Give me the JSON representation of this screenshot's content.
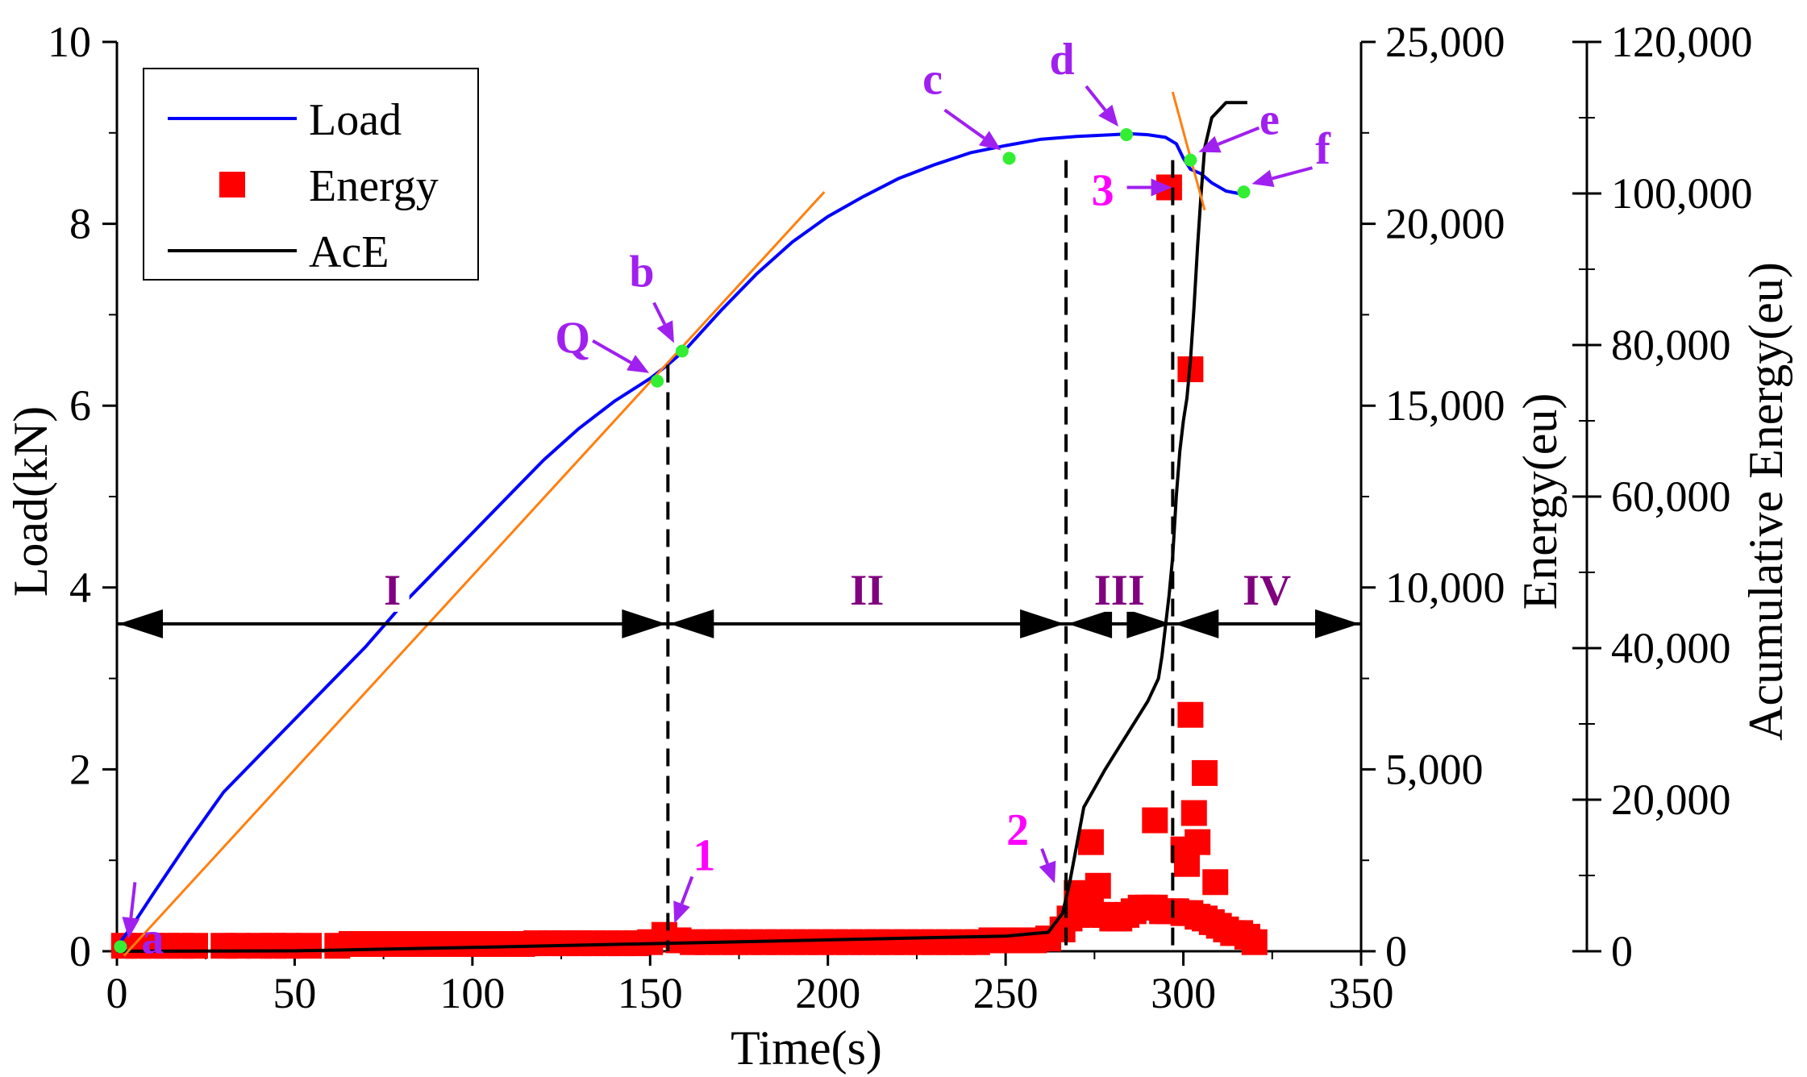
{
  "chart_data": {
    "type": "line",
    "xlabel": "Time(s)",
    "ylabel_left": "Load(kN)",
    "ylabel_right1": "Energy(eu)",
    "ylabel_right2": "Acumulative Energy(eu)",
    "xlim": [
      0,
      350
    ],
    "ylim_load": [
      0,
      10
    ],
    "ylim_energy": [
      0,
      25000
    ],
    "ylim_ace": [
      0,
      120000
    ],
    "x_ticks": [
      "0",
      "50",
      "100",
      "150",
      "200",
      "250",
      "300",
      "350"
    ],
    "x_tick_values": [
      0,
      50,
      100,
      150,
      200,
      250,
      300,
      350
    ],
    "load_ticks": [
      "0",
      "2",
      "4",
      "6",
      "8",
      "10"
    ],
    "load_tick_values": [
      0,
      2,
      4,
      6,
      8,
      10
    ],
    "energy_ticks": [
      "0",
      "5,000",
      "10,000",
      "15,000",
      "20,000",
      "25,000"
    ],
    "energy_tick_values": [
      0,
      5000,
      10000,
      15000,
      20000,
      25000
    ],
    "ace_ticks": [
      "0",
      "20,000",
      "40,000",
      "60,000",
      "80,000",
      "100,000",
      "120,000"
    ],
    "ace_tick_values": [
      0,
      20000,
      40000,
      60000,
      80000,
      100000,
      120000
    ],
    "legend": [
      {
        "label": "Load",
        "kind": "line",
        "color": "#0000ff"
      },
      {
        "label": "Energy",
        "kind": "square",
        "color": "#ff0000"
      },
      {
        "label": "AcE",
        "kind": "line",
        "color": "#000000"
      }
    ],
    "series": [
      {
        "name": "Load",
        "axis": "load",
        "color": "#0000ff",
        "x": [
          0,
          5,
          10,
          20,
          30,
          40,
          50,
          60,
          70,
          80,
          90,
          100,
          110,
          120,
          130,
          140,
          150,
          155,
          160,
          170,
          180,
          190,
          200,
          210,
          220,
          230,
          240,
          250,
          260,
          270,
          280,
          285,
          290,
          295,
          298,
          300,
          302,
          305,
          308,
          312,
          316,
          318
        ],
        "values": [
          0.05,
          0.32,
          0.62,
          1.2,
          1.75,
          2.15,
          2.55,
          2.95,
          3.35,
          3.8,
          4.2,
          4.6,
          5.0,
          5.4,
          5.75,
          6.05,
          6.3,
          6.45,
          6.62,
          7.05,
          7.45,
          7.8,
          8.08,
          8.3,
          8.5,
          8.65,
          8.78,
          8.86,
          8.93,
          8.96,
          8.98,
          8.99,
          8.98,
          8.95,
          8.88,
          8.72,
          8.6,
          8.55,
          8.45,
          8.36,
          8.33,
          8.34
        ]
      },
      {
        "name": "AcE",
        "axis": "ace",
        "color": "#000000",
        "x": [
          0,
          50,
          100,
          150,
          200,
          250,
          262,
          266,
          268,
          270,
          272,
          275,
          278,
          282,
          286,
          290,
          293,
          294,
          295,
          296,
          297,
          298,
          299,
          300,
          301,
          302,
          303,
          304,
          305,
          306,
          307,
          308,
          310,
          312,
          315,
          318
        ],
        "values": [
          0,
          50,
          500,
          1000,
          1500,
          2000,
          2500,
          5000,
          9000,
          14000,
          19000,
          21500,
          24000,
          27000,
          30000,
          33000,
          36000,
          39000,
          43000,
          47000,
          52000,
          60000,
          66000,
          70000,
          73000,
          78000,
          85000,
          93000,
          100000,
          106000,
          108000,
          110000,
          111000,
          112000,
          112000,
          112000
        ]
      },
      {
        "name": "Tangent 1",
        "axis": "load",
        "color": "#ff7f0e",
        "x": [
          2,
          199
        ],
        "values": [
          -0.05,
          8.35
        ]
      },
      {
        "name": "Tangent 2",
        "axis": "load",
        "color": "#ff7f0e",
        "x": [
          297,
          306
        ],
        "values": [
          9.45,
          8.15
        ]
      }
    ],
    "energy_points": {
      "name": "Energy",
      "axis": "energy",
      "color": "#ff0000",
      "x": [
        2,
        6,
        10,
        14,
        18,
        22,
        30,
        34,
        40,
        44,
        48,
        54,
        62,
        66,
        70,
        74,
        78,
        82,
        86,
        90,
        94,
        98,
        102,
        106,
        110,
        114,
        118,
        122,
        126,
        130,
        134,
        138,
        142,
        146,
        150,
        154,
        158,
        162,
        166,
        170,
        174,
        178,
        182,
        186,
        190,
        194,
        198,
        202,
        206,
        210,
        214,
        218,
        222,
        226,
        230,
        234,
        238,
        242,
        246,
        250,
        254,
        258,
        262,
        266,
        268,
        270,
        272,
        274,
        276,
        278,
        280,
        282,
        284,
        286,
        288,
        290,
        292,
        294,
        296,
        298,
        300,
        302,
        304,
        306,
        308,
        310,
        312,
        314,
        316,
        318,
        320,
        270,
        274,
        276,
        292,
        296,
        301,
        302,
        302,
        303,
        304,
        306,
        309,
        300
      ],
      "values": [
        150,
        150,
        150,
        150,
        150,
        150,
        150,
        150,
        150,
        150,
        150,
        150,
        150,
        200,
        200,
        200,
        200,
        200,
        200,
        200,
        200,
        200,
        200,
        200,
        200,
        200,
        220,
        220,
        220,
        220,
        220,
        220,
        220,
        220,
        250,
        450,
        300,
        250,
        250,
        250,
        250,
        250,
        250,
        250,
        250,
        250,
        250,
        250,
        250,
        250,
        250,
        250,
        250,
        250,
        250,
        250,
        250,
        250,
        300,
        300,
        300,
        300,
        350,
        600,
        900,
        1000,
        1100,
        1100,
        1000,
        1000,
        900,
        900,
        1000,
        1100,
        1200,
        1200,
        1200,
        1100,
        1100,
        1100,
        1050,
        1050,
        950,
        900,
        800,
        700,
        600,
        500,
        500,
        400,
        250,
        1600,
        3000,
        1800,
        3600,
        21000,
        2400,
        6500,
        16000,
        3800,
        3000,
        4900,
        1900,
        2800
      ]
    },
    "stage_labels": [
      "I",
      "II",
      "III",
      "IV"
    ],
    "stage_boundaries": [
      0,
      155,
      267,
      297,
      350
    ],
    "stage_arrow_load": 3.6,
    "point_labels": [
      "a",
      "Q",
      "b",
      "c",
      "d",
      "e",
      "f"
    ],
    "point_x": [
      1,
      152,
      159,
      251,
      284,
      302,
      317
    ],
    "point_load": [
      0.05,
      6.27,
      6.6,
      8.72,
      8.98,
      8.7,
      8.35
    ],
    "number_labels": [
      "1",
      "2",
      "3"
    ],
    "number_x": [
      155,
      267,
      300
    ],
    "number_energy": [
      500,
      1600,
      21000
    ],
    "colors": {
      "load": "#0000ff",
      "energy": "#ff0000",
      "ace": "#000000",
      "tangent": "#ff7f0e",
      "marker": "#33ee33",
      "annotation": "#a020f0",
      "number_annotation": "#ff00ff",
      "stage_label": "#800080"
    }
  }
}
